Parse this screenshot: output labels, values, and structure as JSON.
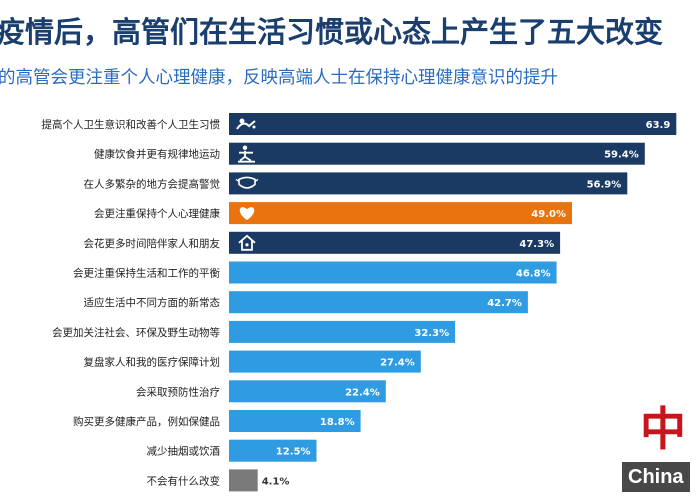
{
  "header": {
    "title": "疫情后，高管们在生活习惯或心态上产生了五大改变",
    "subtitle": "的高管会更注重个人心理健康，反映高端人士在保持心理健康意识的提升"
  },
  "colors": {
    "dark_navy": "#1a3a64",
    "orange": "#e8730f",
    "light_blue": "#2f9be3",
    "gray": "#7a7a7a",
    "title": "#1a3e6e",
    "subtitle": "#2a6cc0"
  },
  "chart_data": {
    "type": "bar",
    "orientation": "horizontal",
    "categories": [
      "提高个人卫生意识和改善个人卫生习惯",
      "健康饮食并更有规律地运动",
      "在人多繁杂的地方会提高警觉",
      "会更注重保持个人心理健康",
      "会花更多时间陪伴家人和朋友",
      "会更注重保持生活和工作的平衡",
      "适应生活中不同方面的新常态",
      "会更加关注社会、环保及野生动物等",
      "复盘家人和我的医疗保障计划",
      "会采取预防性治疗",
      "购买更多健康产品，例如保健品",
      "减少抽烟或饮酒",
      "不会有什么改变"
    ],
    "values": [
      63.9,
      59.4,
      56.9,
      49.0,
      47.3,
      46.8,
      42.7,
      32.3,
      27.4,
      22.4,
      18.8,
      12.5,
      4.1
    ],
    "value_labels": [
      "63.9",
      "59.4%",
      "56.9%",
      "49.0%",
      "47.3%",
      "46.8%",
      "42.7%",
      "32.3%",
      "27.4%",
      "22.4%",
      "18.8%",
      "12.5%",
      "4.1%"
    ],
    "bar_colors": [
      "dark_navy",
      "dark_navy",
      "dark_navy",
      "orange",
      "dark_navy",
      "light_blue",
      "light_blue",
      "light_blue",
      "light_blue",
      "light_blue",
      "light_blue",
      "light_blue",
      "gray"
    ],
    "icons": [
      "hygiene-icon",
      "exercise-icon",
      "mask-icon",
      "heart-icon",
      "home-icon",
      null,
      null,
      null,
      null,
      null,
      null,
      null,
      null
    ],
    "xlabel": "",
    "ylabel": "",
    "xlim": [
      0,
      66
    ],
    "grid": false,
    "legend": "none"
  },
  "watermark": {
    "cn": "中",
    "en": "China"
  }
}
